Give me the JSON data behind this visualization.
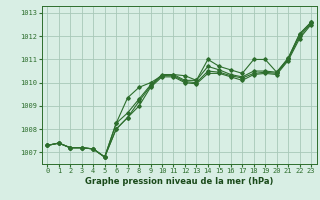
{
  "title": "Graphe pression niveau de la mer (hPa)",
  "background_color": "#d8eee4",
  "grid_color": "#a8c8b8",
  "line_color": "#2d6e2d",
  "xlim": [
    -0.5,
    23.5
  ],
  "ylim": [
    1006.5,
    1013.3
  ],
  "yticks": [
    1007,
    1008,
    1009,
    1010,
    1011,
    1012,
    1013
  ],
  "xticks": [
    0,
    1,
    2,
    3,
    4,
    5,
    6,
    7,
    8,
    9,
    10,
    11,
    12,
    13,
    14,
    15,
    16,
    17,
    18,
    19,
    20,
    21,
    22,
    23
  ],
  "series": [
    [
      1007.3,
      1007.4,
      1007.2,
      1007.2,
      1007.15,
      1006.8,
      1008.25,
      1009.35,
      1009.8,
      1010.0,
      1010.3,
      1010.35,
      1010.3,
      1010.1,
      1011.0,
      1010.7,
      1010.55,
      1010.4,
      1011.0,
      1011.0,
      1010.45,
      1011.05,
      1012.1,
      1012.6
    ],
    [
      1007.3,
      1007.4,
      1007.2,
      1007.2,
      1007.15,
      1006.8,
      1008.25,
      1008.7,
      1009.3,
      1009.9,
      1010.35,
      1010.35,
      1010.1,
      1010.1,
      1010.7,
      1010.55,
      1010.35,
      1010.25,
      1010.5,
      1010.5,
      1010.45,
      1011.05,
      1012.1,
      1012.6
    ],
    [
      1007.3,
      1007.4,
      1007.2,
      1007.2,
      1007.15,
      1006.8,
      1008.0,
      1008.5,
      1009.2,
      1009.85,
      1010.3,
      1010.3,
      1010.05,
      1010.0,
      1010.5,
      1010.45,
      1010.3,
      1010.2,
      1010.4,
      1010.45,
      1010.4,
      1011.0,
      1012.0,
      1012.55
    ],
    [
      1007.3,
      1007.4,
      1007.2,
      1007.2,
      1007.15,
      1006.8,
      1008.0,
      1008.5,
      1009.0,
      1009.8,
      1010.25,
      1010.25,
      1010.0,
      1009.95,
      1010.4,
      1010.4,
      1010.25,
      1010.1,
      1010.35,
      1010.4,
      1010.35,
      1010.95,
      1011.9,
      1012.5
    ]
  ]
}
